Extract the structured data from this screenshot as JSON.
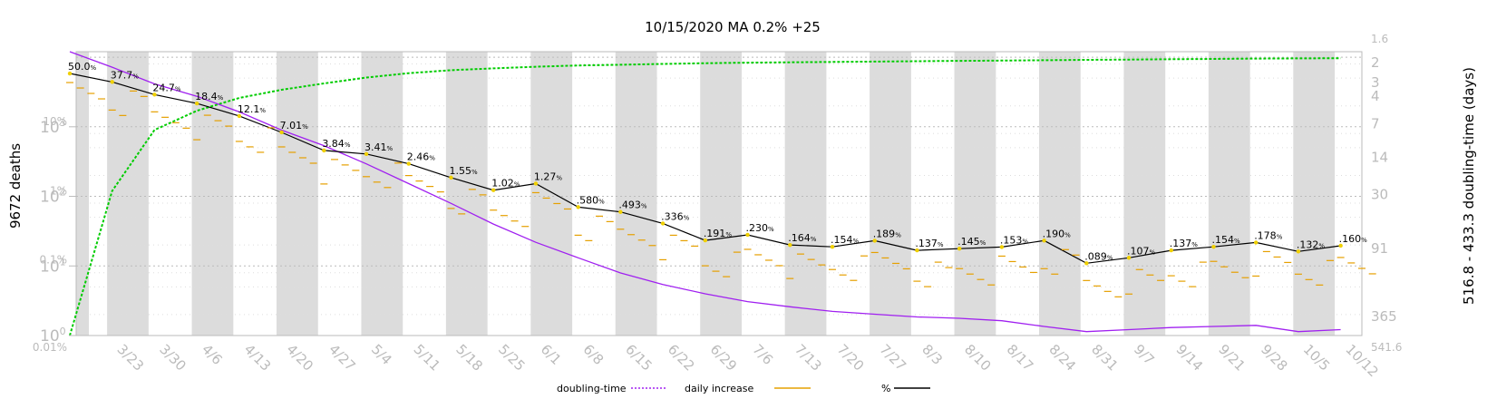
{
  "chart_data": {
    "type": "line",
    "title": "10/15/2020 MA 0.2% +25",
    "ylabel_left": "9672 deaths",
    "ylabel_right": "516.8 - 433.3 doubling-time (days)",
    "left_log_ticks": [
      {
        "base": "10",
        "exp": "0"
      },
      {
        "base": "10",
        "exp": "1"
      },
      {
        "base": "10",
        "exp": "2"
      },
      {
        "base": "10",
        "exp": "3"
      }
    ],
    "pct_ticks": [
      "0.01%",
      "0.1%",
      "1%",
      "10%"
    ],
    "right_ticks": [
      "1.6",
      "2",
      "3",
      "4",
      "7",
      "14",
      "30",
      "91",
      "365",
      "541.6"
    ],
    "x_ticks": [
      "3/23",
      "3/30",
      "4/6",
      "4/13",
      "4/20",
      "4/27",
      "5/4",
      "5/11",
      "5/18",
      "5/25",
      "6/1",
      "6/8",
      "6/15",
      "6/22",
      "6/29",
      "7/6",
      "7/13",
      "7/20",
      "7/27",
      "8/3",
      "8/10",
      "8/17",
      "8/24",
      "8/31",
      "9/7",
      "9/14",
      "9/21",
      "9/28",
      "10/5",
      "10/12"
    ],
    "legend": [
      {
        "label": "doubling-time",
        "color": "#a020f0",
        "style": "dotted"
      },
      {
        "label": "daily increase",
        "color": "#e6a000",
        "style": "solid"
      },
      {
        "label": "%",
        "color": "#000000",
        "style": "solid"
      }
    ],
    "pct_labels": [
      {
        "date": "3/18",
        "text": "50.0"
      },
      {
        "date": "3/25",
        "text": "37.7"
      },
      {
        "date": "4/1",
        "text": "24.7"
      },
      {
        "date": "4/7",
        "text": "18.4"
      },
      {
        "date": "4/13",
        "text": "12.1"
      },
      {
        "date": "4/20",
        "text": "7.01"
      },
      {
        "date": "4/27",
        "text": "3.84"
      },
      {
        "date": "5/4",
        "text": "3.41"
      },
      {
        "date": "5/11",
        "text": "2.46"
      },
      {
        "date": "5/18",
        "text": "1.55"
      },
      {
        "date": "5/25",
        "text": "1.02"
      },
      {
        "date": "6/1",
        "text": "1.27"
      },
      {
        "date": "6/8",
        "text": ".580"
      },
      {
        "date": "6/15",
        "text": ".493"
      },
      {
        "date": "6/22",
        "text": ".336"
      },
      {
        "date": "6/29",
        "text": ".191"
      },
      {
        "date": "7/6",
        "text": ".230"
      },
      {
        "date": "7/13",
        "text": ".164"
      },
      {
        "date": "7/20",
        "text": ".154"
      },
      {
        "date": "7/27",
        "text": ".189"
      },
      {
        "date": "8/3",
        "text": ".137"
      },
      {
        "date": "8/10",
        "text": ".145"
      },
      {
        "date": "8/17",
        "text": ".153"
      },
      {
        "date": "8/24",
        "text": ".190"
      },
      {
        "date": "8/31",
        "text": ".089"
      },
      {
        "date": "9/7",
        "text": ".107"
      },
      {
        "date": "9/14",
        "text": ".137"
      },
      {
        "date": "9/21",
        "text": ".154"
      },
      {
        "date": "9/28",
        "text": ".178"
      },
      {
        "date": "10/5",
        "text": ".132"
      },
      {
        "date": "10/12",
        "text": ".160"
      }
    ],
    "series": [
      {
        "name": "%",
        "color": "#000000",
        "values": [
          50.0,
          37.7,
          24.7,
          18.4,
          12.1,
          7.01,
          3.84,
          3.41,
          2.46,
          1.55,
          1.02,
          1.27,
          0.58,
          0.493,
          0.336,
          0.191,
          0.23,
          0.164,
          0.154,
          0.189,
          0.137,
          0.145,
          0.153,
          0.19,
          0.089,
          0.107,
          0.137,
          0.154,
          0.178,
          0.132,
          0.16
        ]
      },
      {
        "name": "doubling-time",
        "color": "#a020f0",
        "values": [
          1.6,
          2.2,
          3.1,
          4.0,
          5.5,
          8.0,
          11,
          16,
          24,
          36,
          55,
          80,
          110,
          150,
          190,
          230,
          270,
          300,
          330,
          350,
          370,
          380,
          400,
          450,
          500,
          480,
          460,
          450,
          440,
          500,
          480
        ]
      },
      {
        "name": "deaths",
        "color": "#00cc00",
        "values": [
          1,
          120,
          900,
          1700,
          2600,
          3400,
          4200,
          5100,
          5900,
          6500,
          6900,
          7300,
          7600,
          7800,
          8000,
          8200,
          8350,
          8450,
          8550,
          8650,
          8750,
          8850,
          8950,
          9050,
          9150,
          9250,
          9350,
          9450,
          9550,
          9620,
          9672
        ]
      }
    ],
    "grid": true,
    "shaded_weeks": true,
    "legend_position": "bottom"
  }
}
